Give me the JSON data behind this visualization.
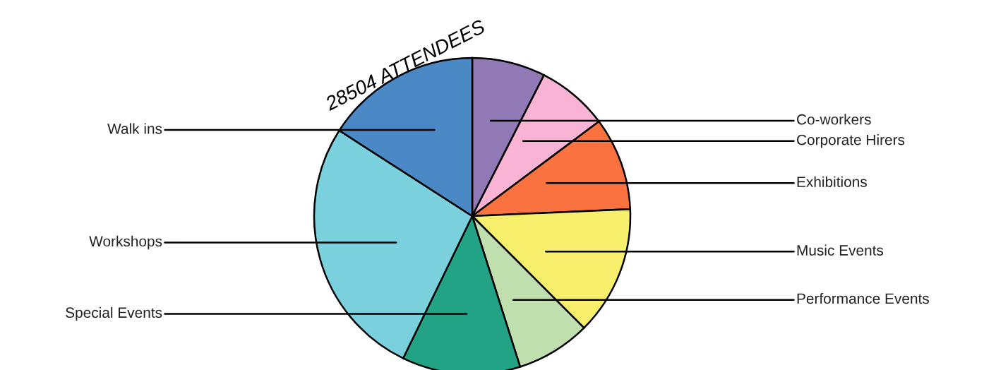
{
  "chart_data": {
    "type": "pie",
    "title": "28504 ATTENDEES",
    "categories": [
      "Co-workers",
      "Corporate Hirers",
      "Exhibitions",
      "Music Events",
      "Performance Events",
      "Special Events",
      "Workshops",
      "Walk ins"
    ],
    "values": [
      7.5,
      7.3,
      9.5,
      13.2,
      7.6,
      12.1,
      26.9,
      15.9
    ],
    "colors": [
      "#9179b5",
      "#f9b3d5",
      "#f97240",
      "#f8ef6c",
      "#bfdfae",
      "#22a385",
      "#7bd0de",
      "#4b88c6"
    ]
  }
}
